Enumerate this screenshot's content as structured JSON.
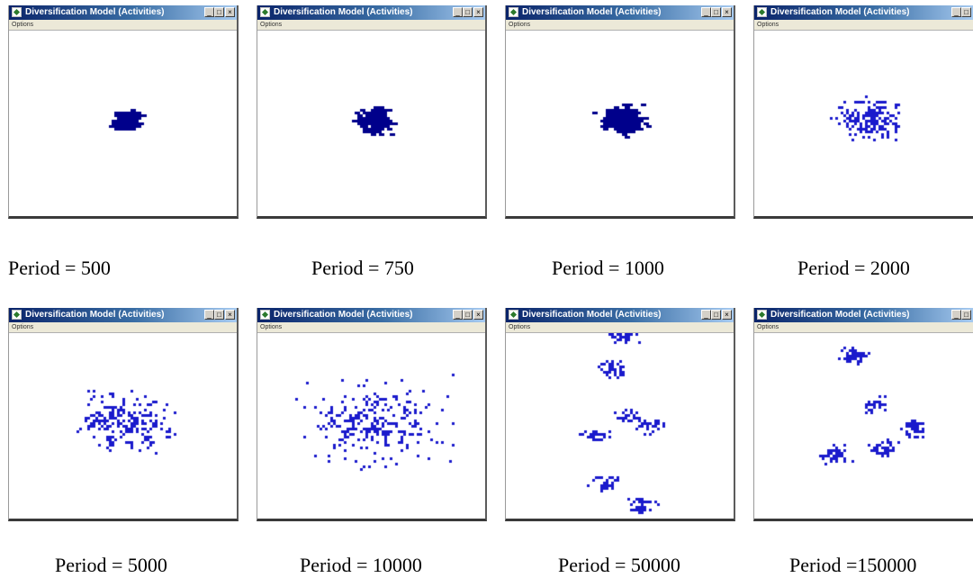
{
  "windows": [
    {
      "title": "Diversification Model (Activities)",
      "menu": "Options",
      "caption": "Period = 500",
      "cluster": {
        "spread": 0.055,
        "count": 240,
        "subclusters": 1,
        "density": "dense"
      }
    },
    {
      "title": "Diversification Model (Activities)",
      "menu": "Options",
      "caption": "Period = 750",
      "cluster": {
        "spread": 0.075,
        "count": 200,
        "subclusters": 1,
        "density": "dense"
      }
    },
    {
      "title": "Diversification Model (Activities)",
      "menu": "Options",
      "caption": "Period = 1000",
      "cluster": {
        "spread": 0.09,
        "count": 220,
        "subclusters": 1,
        "density": "dense"
      }
    },
    {
      "title": "Diversification Model (Activities)",
      "menu": "Options",
      "caption": "Period = 2000",
      "cluster": {
        "spread": 0.14,
        "count": 170,
        "subclusters": 1,
        "density": "sparse"
      }
    },
    {
      "title": "Diversification Model (Activities)",
      "menu": "Options",
      "caption": "Period = 5000",
      "cluster": {
        "spread": 0.2,
        "count": 230,
        "subclusters": 1,
        "density": "sparse"
      }
    },
    {
      "title": "Diversification Model (Activities)",
      "menu": "Options",
      "caption": "Period = 10000",
      "cluster": {
        "spread": 0.26,
        "count": 260,
        "subclusters": 1,
        "density": "sparse"
      }
    },
    {
      "title": "Diversification Model (Activities)",
      "menu": "Options",
      "caption": "Period = 50000",
      "cluster": {
        "spread": 0.5,
        "count": 230,
        "subclusters": 6,
        "density": "scattered"
      }
    },
    {
      "title": "Diversification Model (Activities)",
      "menu": "Options",
      "caption": "Period =150000",
      "cluster": {
        "spread": 0.5,
        "count": 210,
        "subclusters": 5,
        "density": "scattered"
      }
    }
  ],
  "colors": {
    "activity": "#1a1acc",
    "activity_dark": "#00008b",
    "titlebar": "#0a246a"
  },
  "controls": {
    "minimize": "_",
    "maximize": "□",
    "close": "×"
  }
}
